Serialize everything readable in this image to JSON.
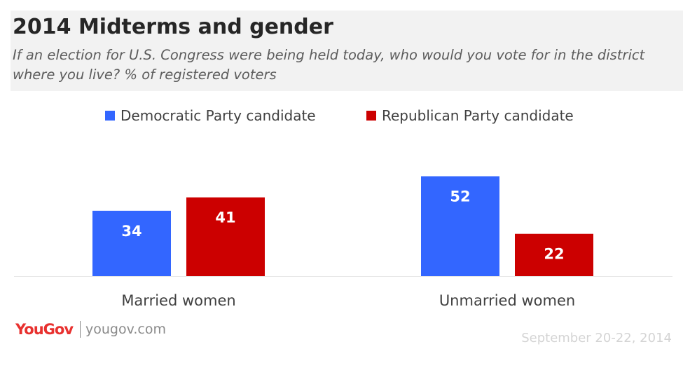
{
  "header": {
    "title": "2014 Midterms and gender",
    "subtitle": "If an election for U.S. Congress were being held today, who would you vote for in the district where you live? % of registered voters"
  },
  "legend": {
    "items": [
      {
        "label": "Democratic Party candidate",
        "color": "#3366ff"
      },
      {
        "label": "Republican Party candidate",
        "color": "#cc0000"
      }
    ]
  },
  "footer": {
    "brand": "YouGov",
    "url": "yougov.com",
    "date": "September 20-22, 2014"
  },
  "chart_data": {
    "type": "bar",
    "title": "2014 Midterms and gender",
    "subtitle": "If an election for U.S. Congress were being held today, who would you vote for in the district where you live? % of registered voters",
    "categories": [
      "Married women",
      "Unmarried women"
    ],
    "series": [
      {
        "name": "Democratic Party candidate",
        "color": "#3366ff",
        "values": [
          34,
          52
        ]
      },
      {
        "name": "Republican Party candidate",
        "color": "#cc0000",
        "values": [
          41,
          22
        ]
      }
    ],
    "ylim": [
      0,
      60
    ],
    "grid": false,
    "legend_position": "top-center",
    "data_labels": true
  }
}
